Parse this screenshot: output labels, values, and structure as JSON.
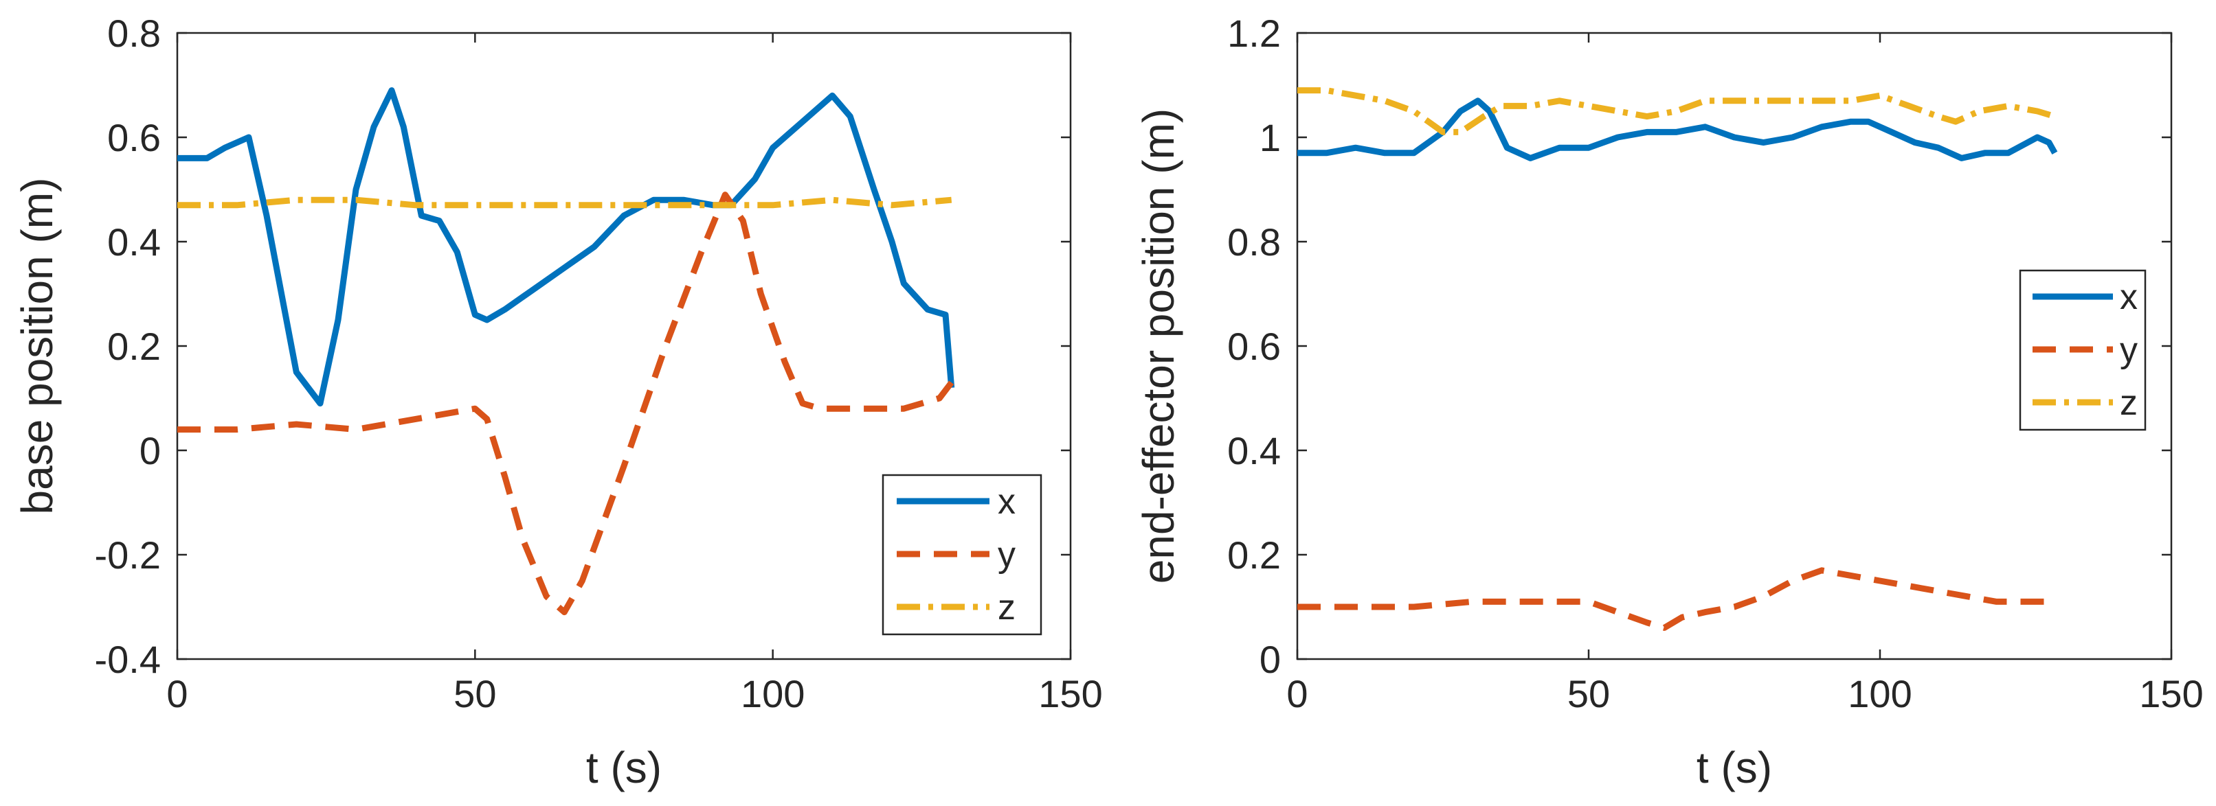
{
  "chart_data": [
    {
      "type": "line",
      "title": "",
      "xlabel": "t (s)",
      "ylabel": "base position (m)",
      "xlim": [
        0,
        150
      ],
      "ylim": [
        -0.4,
        0.8
      ],
      "xticks": [
        0,
        50,
        100,
        150
      ],
      "yticks": [
        -0.4,
        -0.2,
        0,
        0.2,
        0.4,
        0.6,
        0.8
      ],
      "xtick_labels": [
        "0",
        "50",
        "100",
        "150"
      ],
      "ytick_labels": [
        "-0.4",
        "-0.2",
        "0",
        "0.2",
        "0.4",
        "0.6",
        "0.8"
      ],
      "grid": false,
      "legend_position": "bottom-right",
      "series": [
        {
          "name": "x",
          "color": "#0072BD",
          "style": "solid",
          "x": [
            0,
            5,
            8,
            12,
            15,
            20,
            24,
            27,
            30,
            33,
            36,
            38,
            41,
            44,
            47,
            50,
            52,
            55,
            60,
            65,
            70,
            75,
            80,
            85,
            90,
            93,
            97,
            100,
            105,
            110,
            113,
            117,
            120,
            122,
            126,
            129,
            130
          ],
          "values": [
            0.56,
            0.56,
            0.58,
            0.6,
            0.45,
            0.15,
            0.09,
            0.25,
            0.5,
            0.62,
            0.69,
            0.62,
            0.45,
            0.44,
            0.38,
            0.26,
            0.25,
            0.27,
            0.31,
            0.35,
            0.39,
            0.45,
            0.48,
            0.48,
            0.47,
            0.47,
            0.52,
            0.58,
            0.63,
            0.68,
            0.64,
            0.5,
            0.4,
            0.32,
            0.27,
            0.26,
            0.12
          ]
        },
        {
          "name": "y",
          "color": "#D95319",
          "style": "dashed",
          "x": [
            0,
            10,
            20,
            30,
            40,
            50,
            52,
            55,
            58,
            62,
            65,
            68,
            75,
            82,
            88,
            92,
            95,
            98,
            102,
            105,
            108,
            115,
            122,
            128,
            130
          ],
          "values": [
            0.04,
            0.04,
            0.05,
            0.04,
            0.06,
            0.08,
            0.06,
            -0.05,
            -0.17,
            -0.28,
            -0.31,
            -0.25,
            -0.03,
            0.2,
            0.38,
            0.49,
            0.44,
            0.3,
            0.17,
            0.09,
            0.08,
            0.08,
            0.08,
            0.1,
            0.13
          ]
        },
        {
          "name": "z",
          "color": "#EDB120",
          "style": "dash-dot",
          "x": [
            0,
            10,
            20,
            30,
            40,
            50,
            60,
            70,
            80,
            90,
            100,
            110,
            120,
            130
          ],
          "values": [
            0.47,
            0.47,
            0.48,
            0.48,
            0.47,
            0.47,
            0.47,
            0.47,
            0.47,
            0.47,
            0.47,
            0.48,
            0.47,
            0.48
          ]
        }
      ]
    },
    {
      "type": "line",
      "title": "",
      "xlabel": "t (s)",
      "ylabel": "end-effector position (m)",
      "xlim": [
        0,
        150
      ],
      "ylim": [
        0,
        1.2
      ],
      "xticks": [
        0,
        50,
        100,
        150
      ],
      "yticks": [
        0,
        0.2,
        0.4,
        0.6,
        0.8,
        1,
        1.2
      ],
      "xtick_labels": [
        "0",
        "50",
        "100",
        "150"
      ],
      "ytick_labels": [
        "0",
        "0.2",
        "0.4",
        "0.6",
        "0.8",
        "1",
        "1.2"
      ],
      "grid": false,
      "legend_position": "right",
      "series": [
        {
          "name": "x",
          "color": "#0072BD",
          "style": "solid",
          "x": [
            0,
            5,
            10,
            15,
            20,
            25,
            28,
            31,
            33,
            36,
            40,
            45,
            50,
            55,
            60,
            65,
            70,
            75,
            80,
            85,
            90,
            95,
            98,
            102,
            106,
            110,
            114,
            118,
            122,
            127,
            129,
            130
          ],
          "values": [
            0.97,
            0.97,
            0.98,
            0.97,
            0.97,
            1.01,
            1.05,
            1.07,
            1.05,
            0.98,
            0.96,
            0.98,
            0.98,
            1.0,
            1.01,
            1.01,
            1.02,
            1.0,
            0.99,
            1.0,
            1.02,
            1.03,
            1.03,
            1.01,
            0.99,
            0.98,
            0.96,
            0.97,
            0.97,
            1.0,
            0.99,
            0.97
          ]
        },
        {
          "name": "y",
          "color": "#D95319",
          "style": "dashed",
          "x": [
            0,
            10,
            20,
            30,
            40,
            50,
            55,
            60,
            63,
            66,
            70,
            75,
            80,
            85,
            90,
            95,
            100,
            105,
            110,
            115,
            120,
            125,
            130
          ],
          "values": [
            0.1,
            0.1,
            0.1,
            0.11,
            0.11,
            0.11,
            0.09,
            0.07,
            0.06,
            0.08,
            0.09,
            0.1,
            0.12,
            0.15,
            0.17,
            0.16,
            0.15,
            0.14,
            0.13,
            0.12,
            0.11,
            0.11,
            0.11
          ]
        },
        {
          "name": "z",
          "color": "#EDB120",
          "style": "dash-dot",
          "x": [
            0,
            5,
            10,
            15,
            20,
            25,
            28,
            32,
            35,
            40,
            45,
            50,
            55,
            60,
            65,
            70,
            75,
            80,
            85,
            90,
            95,
            100,
            105,
            110,
            113,
            117,
            122,
            127,
            130
          ],
          "values": [
            1.09,
            1.09,
            1.08,
            1.07,
            1.05,
            1.01,
            1.01,
            1.04,
            1.06,
            1.06,
            1.07,
            1.06,
            1.05,
            1.04,
            1.05,
            1.07,
            1.07,
            1.07,
            1.07,
            1.07,
            1.07,
            1.08,
            1.06,
            1.04,
            1.03,
            1.05,
            1.06,
            1.05,
            1.04
          ]
        }
      ]
    }
  ]
}
